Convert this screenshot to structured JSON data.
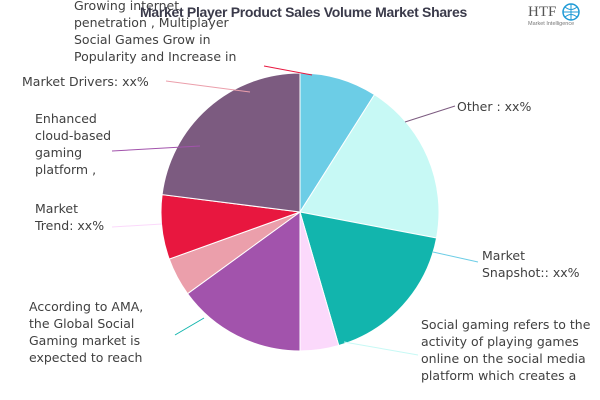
{
  "chart_data": {
    "type": "pie",
    "title": "Market Player Product Sales Volume Market Shares",
    "start_angle_deg": 90,
    "direction": "clockwise",
    "slices": [
      {
        "key": "snapshot",
        "lines": [
          "Market",
          "Snapshot:: xx%"
        ],
        "value": 9,
        "color": "#6ccde6"
      },
      {
        "key": "social",
        "lines": [
          "Social gaming refers to the",
          "activity of playing games",
          "online on the social media",
          "platform which creates a"
        ],
        "value": 19,
        "color": "#c7f9f5"
      },
      {
        "key": "ama",
        "lines": [
          "According to AMA,",
          "the Global Social",
          "Gaming market is",
          "expected to reach"
        ],
        "value": 17.5,
        "color": "#12b5ad"
      },
      {
        "key": "trend",
        "lines": [
          "Market",
          "Trend: xx%"
        ],
        "value": 4.5,
        "color": "#fbd9fb"
      },
      {
        "key": "cloud",
        "lines": [
          "Enhanced",
          "cloud-based",
          "gaming",
          "platform ,"
        ],
        "value": 15,
        "color": "#a253ac"
      },
      {
        "key": "drivers",
        "lines": [
          "Market Drivers: xx%"
        ],
        "value": 4.5,
        "color": "#eb9fab"
      },
      {
        "key": "growing",
        "lines": [
          "Growing internet",
          "penetration , Multiplayer",
          "Social Games Grow in",
          "Popularity and Increase in"
        ],
        "value": 7.5,
        "color": "#e8173f"
      },
      {
        "key": "other",
        "lines": [
          "Other : xx%"
        ],
        "value": 23,
        "color": "#7c5b80"
      }
    ]
  },
  "logo": {
    "text": "HTF",
    "subtext": "Market Intelligence"
  }
}
